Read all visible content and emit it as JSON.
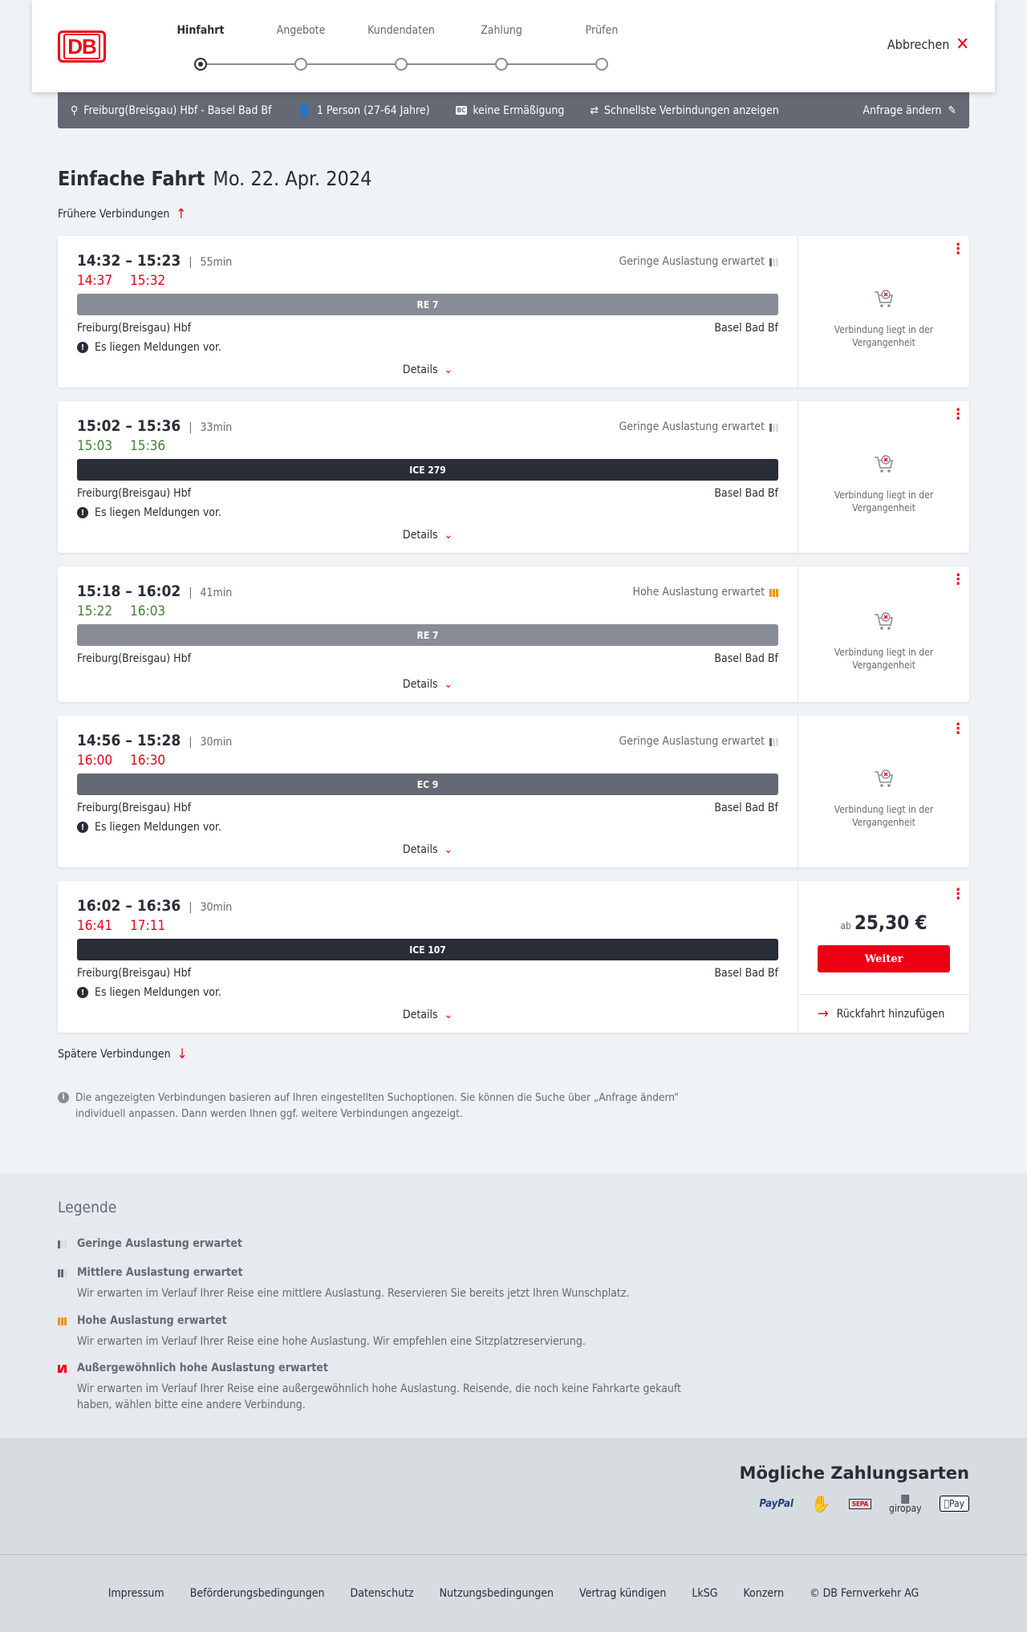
{
  "header": {
    "logo": "DB",
    "steps": [
      "Hinfahrt",
      "Angebote",
      "Kundendaten",
      "Zahlung",
      "Prüfen"
    ],
    "active_step": 0,
    "cancel": "Abbrechen"
  },
  "search_bar": {
    "route": "Freiburg(Breisgau) Hbf - Basel Bad Bf",
    "passengers": "1 Person (27-64 Jahre)",
    "bc_badge": "BC",
    "discount": "keine Ermäßigung",
    "fastest": "Schnellste Verbindungen anzeigen",
    "edit": "Anfrage ändern"
  },
  "title": {
    "type": "Einfache Fahrt",
    "date": "Mo. 22. Apr. 2024"
  },
  "earlier": "Frühere Verbindungen",
  "later": "Spätere Verbindungen",
  "connections": [
    {
      "planned": "14:32 – 15:23",
      "duration": "55min",
      "actual_dep": "14:37",
      "actual_arr": "15:32",
      "realtime_status": "delayed",
      "load": "Geringe Auslastung erwartet",
      "load_level": 1,
      "train": "RE 7",
      "train_color": "#878c96",
      "from": "Freiburg(Breisgau) Hbf",
      "to": "Basel Bad Bf",
      "message": "Es liegen Meldungen vor.",
      "details": "Details",
      "status": "Verbindung liegt in der Vergangenheit"
    },
    {
      "planned": "15:02 – 15:36",
      "duration": "33min",
      "actual_dep": "15:03",
      "actual_arr": "15:36",
      "realtime_status": "on-time",
      "load": "Geringe Auslastung erwartet",
      "load_level": 1,
      "train": "ICE 279",
      "train_color": "#282d37",
      "from": "Freiburg(Breisgau) Hbf",
      "to": "Basel Bad Bf",
      "message": "Es liegen Meldungen vor.",
      "details": "Details",
      "status": "Verbindung liegt in der Vergangenheit"
    },
    {
      "planned": "15:18 – 16:02",
      "duration": "41min",
      "actual_dep": "15:22",
      "actual_arr": "16:03",
      "realtime_status": "on-time",
      "load": "Hohe Auslastung erwartet",
      "load_level": 3,
      "train": "RE 7",
      "train_color": "#878c96",
      "from": "Freiburg(Breisgau) Hbf",
      "to": "Basel Bad Bf",
      "message": null,
      "details": "Details",
      "status": "Verbindung liegt in der Vergangenheit"
    },
    {
      "planned": "14:56 – 15:28",
      "duration": "30min",
      "actual_dep": "16:00",
      "actual_arr": "16:30",
      "realtime_status": "delayed",
      "load": "Geringe Auslastung erwartet",
      "load_level": 1,
      "train": "EC 9",
      "train_color": "#646973",
      "from": "Freiburg(Breisgau) Hbf",
      "to": "Basel Bad Bf",
      "message": "Es liegen Meldungen vor.",
      "details": "Details",
      "status": "Verbindung liegt in der Vergangenheit"
    },
    {
      "planned": "16:02 – 16:36",
      "duration": "30min",
      "actual_dep": "16:41",
      "actual_arr": "17:11",
      "realtime_status": "delayed",
      "load": null,
      "load_level": 0,
      "train": "ICE 107",
      "train_color": "#282d37",
      "from": "Freiburg(Breisgau) Hbf",
      "to": "Basel Bad Bf",
      "message": "Es liegen Meldungen vor.",
      "details": "Details",
      "price_prefix": "ab",
      "price": "25,30 €",
      "button": "Weiter",
      "return": "Rückfahrt hinzufügen"
    }
  ],
  "note": "Die angezeigten Verbindungen basieren auf Ihren eingestellten Suchoptionen. Sie können die Suche über „Anfrage ändern“ individuell anpassen. Dann werden Ihnen ggf. weitere Verbindungen angezeigt.",
  "legend": {
    "title": "Legende",
    "items": [
      {
        "title": "Geringe Auslastung erwartet",
        "text": ""
      },
      {
        "title": "Mittlere Auslastung erwartet",
        "text": "Wir erwarten im Verlauf Ihrer Reise eine mittlere Auslastung. Reservieren Sie bereits jetzt Ihren Wunschplatz."
      },
      {
        "title": "Hohe Auslastung erwartet",
        "text": "Wir erwarten im Verlauf Ihrer Reise eine hohe Auslastung. Wir empfehlen eine Sitzplatzreservierung."
      },
      {
        "title": "Außergewöhnlich hohe Auslastung erwartet",
        "text": "Wir erwarten im Verlauf Ihrer Reise eine außergewöhnlich hohe Auslastung. Reisende, die noch keine Fahrkarte gekauft haben, wählen bitte eine andere Verbindung."
      }
    ]
  },
  "payment": {
    "title": "Mögliche Zahlungsarten",
    "methods": [
      "PayPal",
      "Kreditkarte",
      "SEPA",
      "giropay",
      "Pay"
    ]
  },
  "footer": [
    "Impressum",
    "Beförderungsbedingungen",
    "Datenschutz",
    "Nutzungsbedingungen",
    "Vertrag kündigen",
    "LkSG",
    "Konzern",
    "© DB Fernverkehr AG"
  ],
  "colors": {
    "accent": "#ec0016",
    "on_time": "#408335",
    "high_load": "#f39200"
  }
}
